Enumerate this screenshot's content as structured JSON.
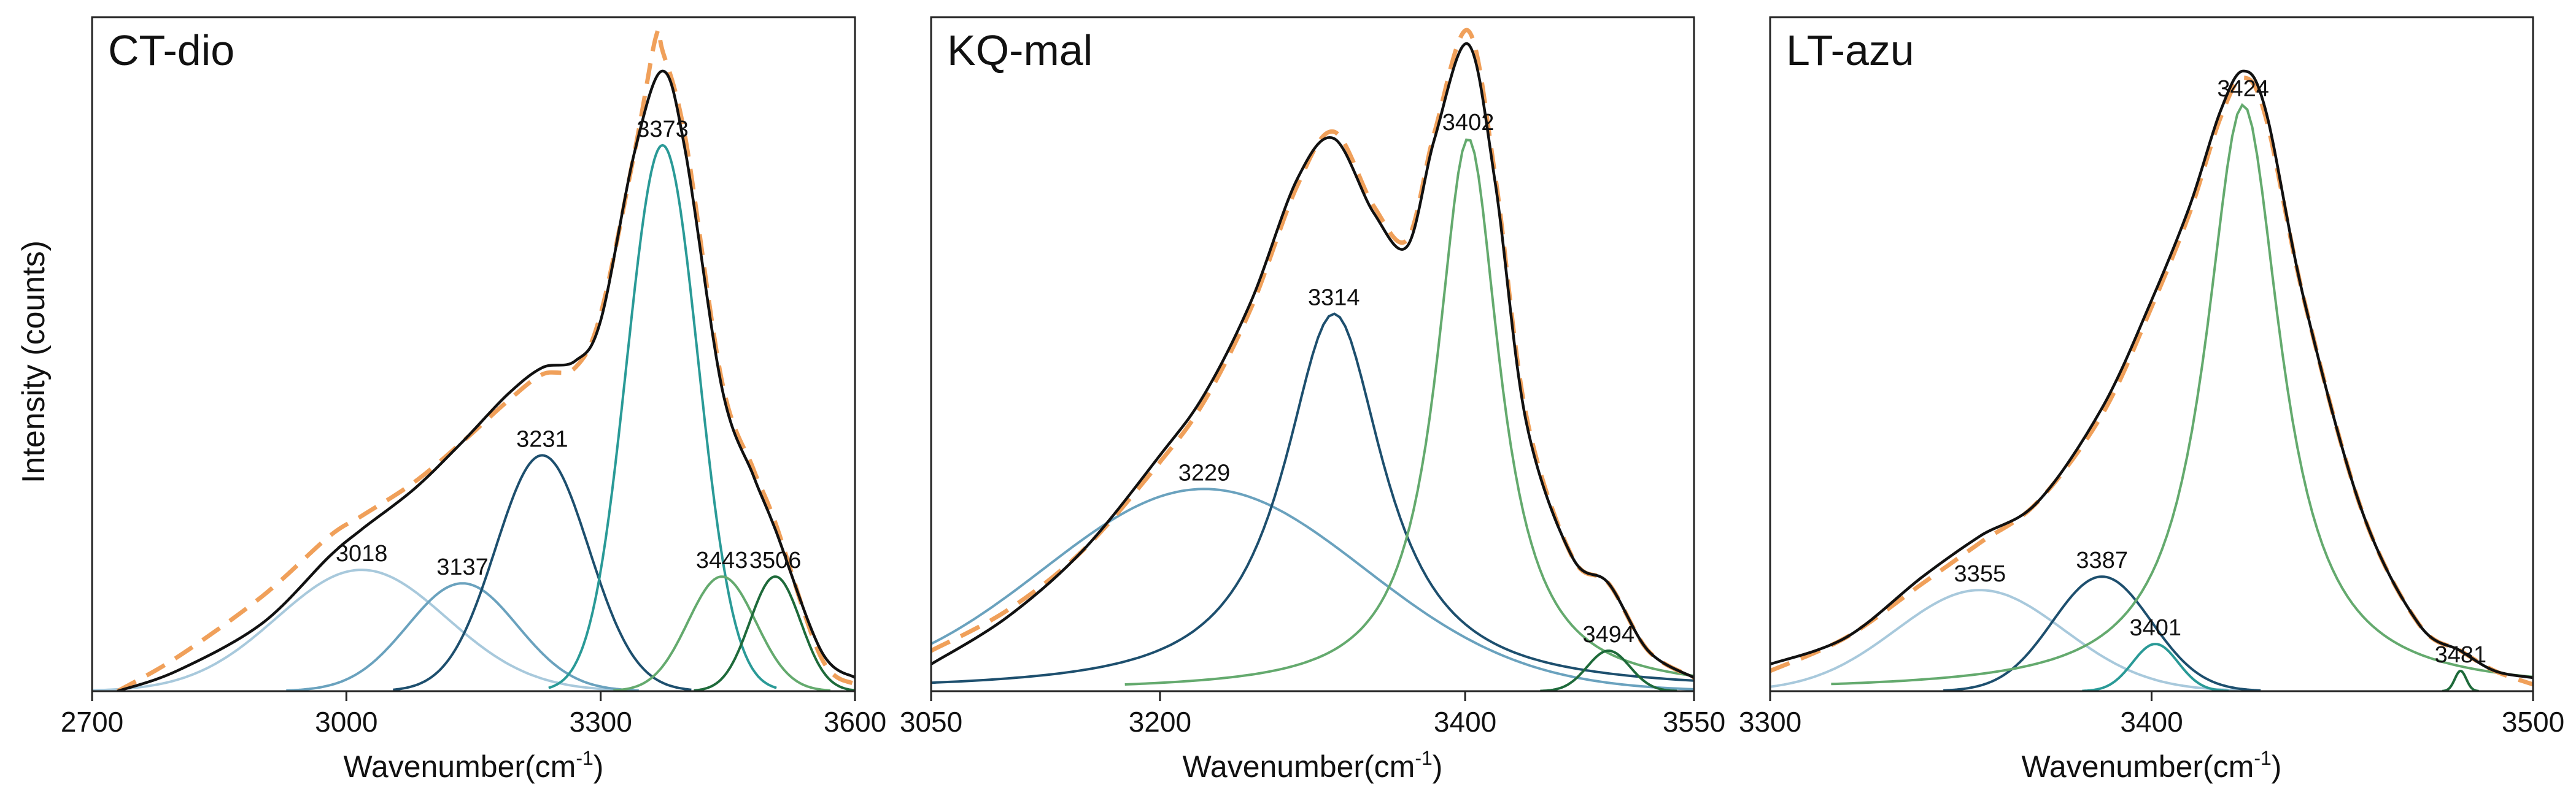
{
  "figure": {
    "ylabel": "Intensity (counts)"
  },
  "chart_data": [
    {
      "type": "line",
      "title": "CT-dio",
      "xlabel": "Wavenumber(cm",
      "xlabel_sup": "-1",
      "xlabel_close": ")",
      "xlim": [
        2700,
        3600
      ],
      "ylim": [
        0,
        1.0
      ],
      "xticks": [
        "2700",
        "3000",
        "3300",
        "3600"
      ],
      "xtick_values": [
        2700,
        3000,
        3300,
        3600
      ],
      "peaks": [
        {
          "center": 3018,
          "label": "3018",
          "amplitude": 0.18,
          "width": 100,
          "color": "#a8c9dc",
          "shape": "gauss"
        },
        {
          "center": 3137,
          "label": "3137",
          "amplitude": 0.16,
          "width": 65,
          "color": "#6aa2be",
          "shape": "gauss"
        },
        {
          "center": 3231,
          "label": "3231",
          "amplitude": 0.35,
          "width": 55,
          "color": "#1d4f6e",
          "shape": "gauss"
        },
        {
          "center": 3373,
          "label": "3373",
          "amplitude": 0.81,
          "width": 42,
          "color": "#2a9a97",
          "shape": "gauss"
        },
        {
          "center": 3443,
          "label": "3443",
          "amplitude": 0.17,
          "width": 40,
          "color": "#64aa6e",
          "shape": "gauss"
        },
        {
          "center": 3506,
          "label": "3506",
          "amplitude": 0.17,
          "width": 30,
          "color": "#1e6a3a",
          "shape": "gauss"
        }
      ],
      "total": {
        "x": [
          2730,
          2800,
          2900,
          2980,
          3018,
          3080,
          3137,
          3190,
          3231,
          3270,
          3300,
          3340,
          3373,
          3400,
          3443,
          3480,
          3506,
          3560,
          3600
        ],
        "y": [
          0.0,
          0.03,
          0.1,
          0.2,
          0.24,
          0.3,
          0.37,
          0.44,
          0.48,
          0.49,
          0.55,
          0.8,
          0.92,
          0.8,
          0.45,
          0.32,
          0.24,
          0.06,
          0.02
        ]
      },
      "fit": {
        "x": [
          2730,
          2800,
          2900,
          2980,
          3018,
          3080,
          3137,
          3190,
          3231,
          3270,
          3300,
          3340,
          3365,
          3373,
          3400,
          3443,
          3480,
          3506,
          3560,
          3600
        ],
        "y": [
          0.0,
          0.05,
          0.14,
          0.23,
          0.26,
          0.31,
          0.37,
          0.43,
          0.47,
          0.48,
          0.56,
          0.8,
          0.97,
          0.95,
          0.82,
          0.46,
          0.33,
          0.25,
          0.05,
          0.01
        ]
      }
    },
    {
      "type": "line",
      "title": "KQ-mal",
      "xlabel": "Wavenumber(cm",
      "xlabel_sup": "-1",
      "xlabel_close": ")",
      "xlim": [
        3050,
        3550
      ],
      "ylim": [
        0,
        1.0
      ],
      "xticks": [
        "3050",
        "3200",
        "3400",
        "3550"
      ],
      "xtick_values": [
        3050,
        3200,
        3400,
        3550
      ],
      "peaks": [
        {
          "center": 3229,
          "label": "3229",
          "amplitude": 0.3,
          "width": 105,
          "color": "#6aa2be",
          "shape": "gauss"
        },
        {
          "center": 3314,
          "label": "3314",
          "amplitude": 0.56,
          "width": 40,
          "color": "#1d4f6e",
          "shape": "lorentz"
        },
        {
          "center": 3402,
          "label": "3402",
          "amplitude": 0.82,
          "width": 25,
          "color": "#64aa6e",
          "shape": "lorentz"
        },
        {
          "center": 3494,
          "label": "3494",
          "amplitude": 0.06,
          "width": 14,
          "color": "#1e6a3a",
          "shape": "gauss"
        }
      ],
      "total": {
        "x": [
          3050,
          3100,
          3150,
          3200,
          3229,
          3260,
          3290,
          3314,
          3340,
          3362,
          3380,
          3402,
          3420,
          3440,
          3470,
          3494,
          3520,
          3550
        ],
        "y": [
          0.04,
          0.11,
          0.21,
          0.35,
          0.44,
          0.58,
          0.76,
          0.82,
          0.71,
          0.66,
          0.82,
          0.96,
          0.75,
          0.4,
          0.2,
          0.16,
          0.06,
          0.02
        ]
      },
      "fit": {
        "x": [
          3050,
          3100,
          3150,
          3200,
          3229,
          3260,
          3290,
          3314,
          3340,
          3362,
          3380,
          3402,
          3420,
          3440,
          3470,
          3494,
          3520,
          3550
        ],
        "y": [
          0.06,
          0.12,
          0.21,
          0.34,
          0.43,
          0.57,
          0.75,
          0.83,
          0.72,
          0.67,
          0.83,
          0.98,
          0.76,
          0.41,
          0.2,
          0.16,
          0.06,
          0.02
        ]
      }
    },
    {
      "type": "line",
      "title": "LT-azu",
      "xlabel": "Wavenumber(cm",
      "xlabel_sup": "-1",
      "xlabel_close": ")",
      "xlim": [
        3300,
        3500
      ],
      "ylim": [
        0,
        1.0
      ],
      "xticks": [
        "3300",
        "3400",
        "3500"
      ],
      "xtick_values": [
        3300,
        3400,
        3500
      ],
      "peaks": [
        {
          "center": 3355,
          "label": "3355",
          "amplitude": 0.15,
          "width": 22,
          "color": "#a8c9dc",
          "shape": "gauss"
        },
        {
          "center": 3387,
          "label": "3387",
          "amplitude": 0.17,
          "width": 13,
          "color": "#1d4f6e",
          "shape": "gauss"
        },
        {
          "center": 3401,
          "label": "3401",
          "amplitude": 0.07,
          "width": 6,
          "color": "#2a9a97",
          "shape": "gauss"
        },
        {
          "center": 3424,
          "label": "3424",
          "amplitude": 0.87,
          "width": 12,
          "color": "#64aa6e",
          "shape": "lorentz"
        },
        {
          "center": 3481,
          "label": "3481",
          "amplitude": 0.03,
          "width": 1.5,
          "color": "#1e6a3a",
          "shape": "gauss"
        }
      ],
      "total": {
        "x": [
          3300,
          3320,
          3340,
          3355,
          3370,
          3387,
          3400,
          3410,
          3418,
          3424,
          3430,
          3440,
          3455,
          3470,
          3481,
          3490,
          3500
        ],
        "y": [
          0.04,
          0.08,
          0.17,
          0.23,
          0.28,
          0.42,
          0.58,
          0.72,
          0.86,
          0.92,
          0.86,
          0.58,
          0.27,
          0.1,
          0.06,
          0.03,
          0.02
        ]
      },
      "fit": {
        "x": [
          3300,
          3320,
          3340,
          3355,
          3370,
          3387,
          3400,
          3410,
          3418,
          3424,
          3430,
          3440,
          3455,
          3470,
          3481,
          3490,
          3500
        ],
        "y": [
          0.03,
          0.08,
          0.16,
          0.22,
          0.28,
          0.41,
          0.57,
          0.71,
          0.85,
          0.91,
          0.85,
          0.58,
          0.27,
          0.1,
          0.06,
          0.03,
          0.01
        ]
      }
    }
  ]
}
